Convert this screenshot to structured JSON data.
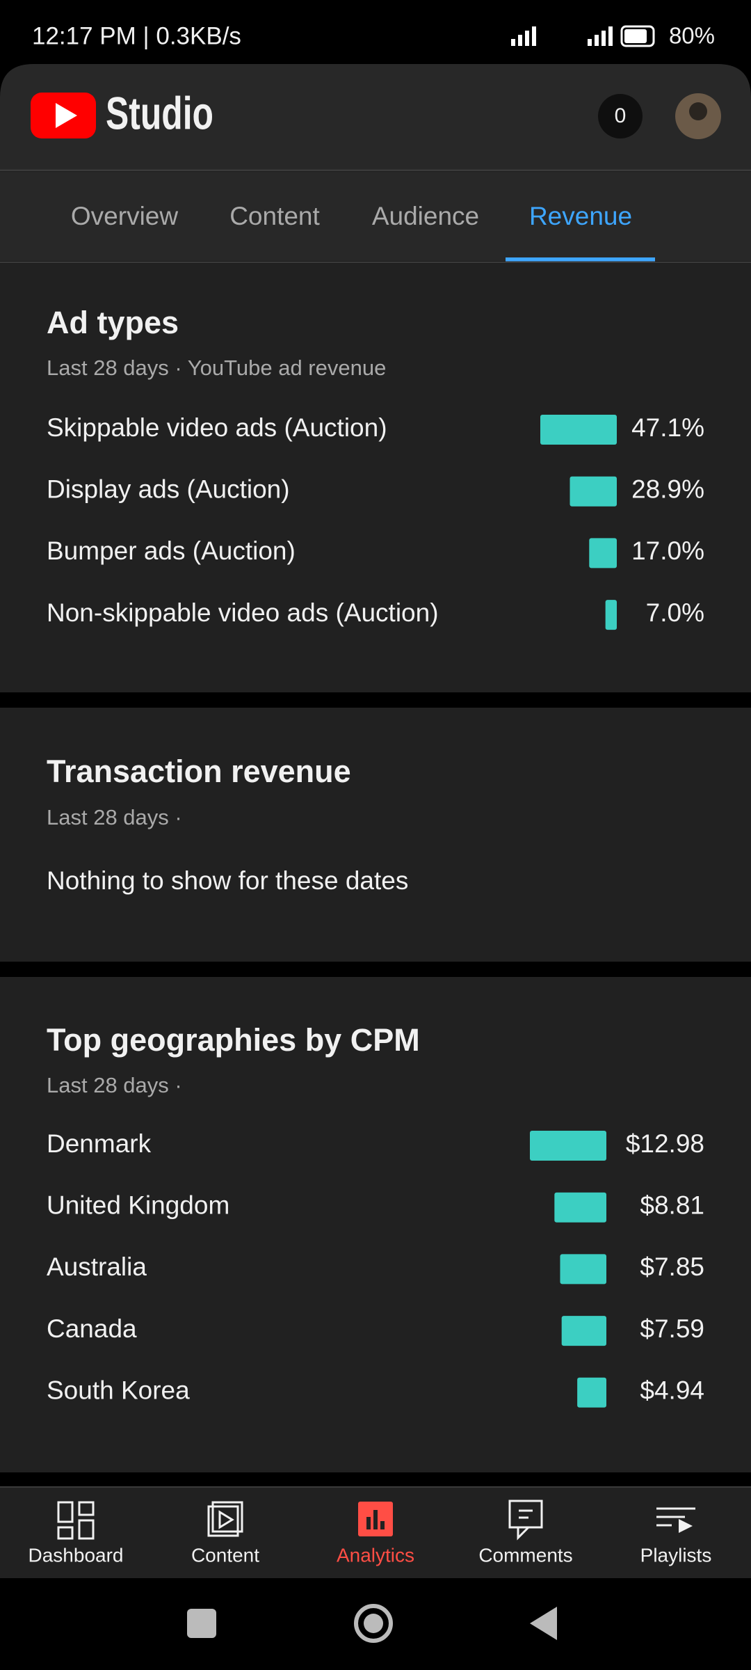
{
  "status_bar": {
    "time": "12:17 PM | 0.3KB/s",
    "battery": "80%"
  },
  "header": {
    "title": "Studio",
    "notifications": "0"
  },
  "tabs": [
    "Overview",
    "Content",
    "Audience",
    "Revenue"
  ],
  "ad_types": {
    "title": "Ad types",
    "subtitle": "Last 28 days · YouTube ad revenue",
    "categories": [
      "Skippable video ads (Auction)",
      "Display ads (Auction)",
      "Bumper ads (Auction)",
      "Non-skippable video ads (Auction)"
    ],
    "values": [
      47.1,
      28.9,
      17.0,
      7.0
    ],
    "value_labels": [
      "47.1%",
      "28.9%",
      "17.0%",
      "7.0%"
    ],
    "color": "#3ccfc2"
  },
  "transaction_revenue": {
    "title": "Transaction revenue",
    "subtitle": "Last 28 days ·",
    "message": "Nothing to show for these dates"
  },
  "top_geographies": {
    "title": "Top geographies by CPM",
    "subtitle": "Last 28 days ·",
    "categories": [
      "Denmark",
      "United Kingdom",
      "Australia",
      "Canada",
      "South Korea"
    ],
    "values": [
      12.98,
      8.81,
      7.85,
      7.59,
      4.94
    ],
    "value_labels": [
      "$12.98",
      "$8.81",
      "$7.85",
      "$7.59",
      "$4.94"
    ],
    "color": "#3ccfc2"
  },
  "bottom_nav": [
    "Dashboard",
    "Content",
    "Analytics",
    "Comments",
    "Playlists"
  ]
}
